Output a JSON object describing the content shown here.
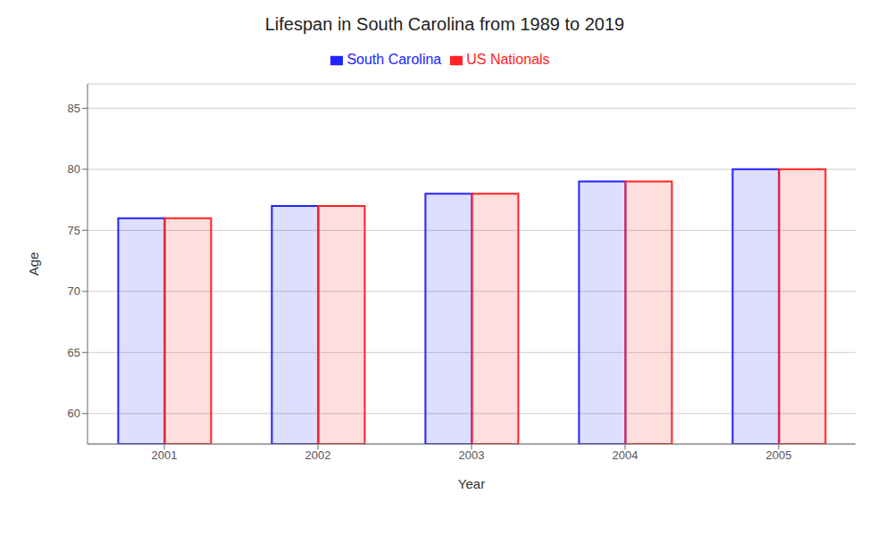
{
  "chart_data": {
    "type": "bar",
    "title": "Lifespan in South Carolina from 1989 to 2019",
    "xlabel": "Year",
    "ylabel": "Age",
    "categories": [
      "2001",
      "2002",
      "2003",
      "2004",
      "2005"
    ],
    "series": [
      {
        "name": "South Carolina",
        "color": "#2222ff",
        "values": [
          76,
          77,
          78,
          79,
          80
        ]
      },
      {
        "name": "US Nationals",
        "color": "#ff2222",
        "values": [
          76,
          77,
          78,
          79,
          80
        ]
      }
    ],
    "ylim": [
      57.5,
      87
    ],
    "yticks": [
      60,
      65,
      70,
      75,
      80,
      85
    ],
    "grid": true,
    "legend": "top"
  }
}
